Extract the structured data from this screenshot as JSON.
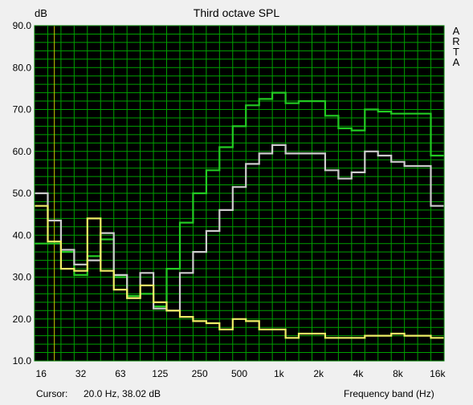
{
  "chart_data": {
    "type": "line",
    "title": "Third octave SPL",
    "ylabel": "dB",
    "xlabel": "Frequency band (Hz)",
    "ylim": [
      10,
      90
    ],
    "x_scale": "log",
    "grid": true,
    "background": "#000000",
    "grid_color": "#00a000",
    "x_tick_labels": [
      "16",
      "32",
      "63",
      "125",
      "250",
      "500",
      "1k",
      "2k",
      "4k",
      "8k",
      "16k"
    ],
    "y_tick_labels": [
      "90.0",
      "80.0",
      "70.0",
      "60.0",
      "50.0",
      "40.0",
      "30.0",
      "20.0",
      "10.0"
    ],
    "bands": [
      16,
      20,
      25,
      31.5,
      40,
      50,
      63,
      80,
      100,
      125,
      160,
      200,
      250,
      315,
      400,
      500,
      630,
      800,
      1000,
      1250,
      1600,
      2000,
      2500,
      3150,
      4000,
      5000,
      6300,
      8000,
      10000,
      12500,
      16000
    ],
    "series": [
      {
        "color": "#22cc22",
        "values": [
          38,
          38,
          36,
          30.5,
          35,
          39,
          30,
          25.5,
          26,
          23,
          32,
          43,
          50,
          55.5,
          61,
          66,
          71,
          72.5,
          74,
          71.5,
          72,
          72,
          68.5,
          65.5,
          65,
          70,
          69.5,
          69,
          69,
          69,
          59
        ]
      },
      {
        "color": "#cccccc",
        "values": [
          50,
          43.5,
          36.5,
          33,
          34,
          40.5,
          30.5,
          25,
          31,
          22.5,
          22,
          31,
          36,
          41,
          46,
          51.5,
          57,
          59.5,
          61.5,
          59.5,
          59.5,
          59.5,
          55.5,
          53.5,
          55,
          60,
          59,
          57.5,
          56.5,
          56.5,
          47
        ]
      },
      {
        "color": "#eeee66",
        "values": [
          47,
          38.5,
          32,
          31.5,
          44,
          31.5,
          27,
          25,
          28,
          24,
          22,
          20.5,
          19.5,
          19,
          17.5,
          20,
          19.5,
          17.5,
          17.5,
          15.5,
          16.5,
          16.5,
          15.5,
          15.5,
          15.5,
          16,
          16,
          16.5,
          16,
          16,
          15.5
        ]
      }
    ],
    "cursor_marker": {
      "band": 20,
      "color": "#cccc00"
    }
  },
  "watermark": [
    "A",
    "R",
    "T",
    "A"
  ],
  "status": {
    "cursor_label": "Cursor:",
    "cursor_value": "20.0 Hz, 38.02 dB"
  }
}
